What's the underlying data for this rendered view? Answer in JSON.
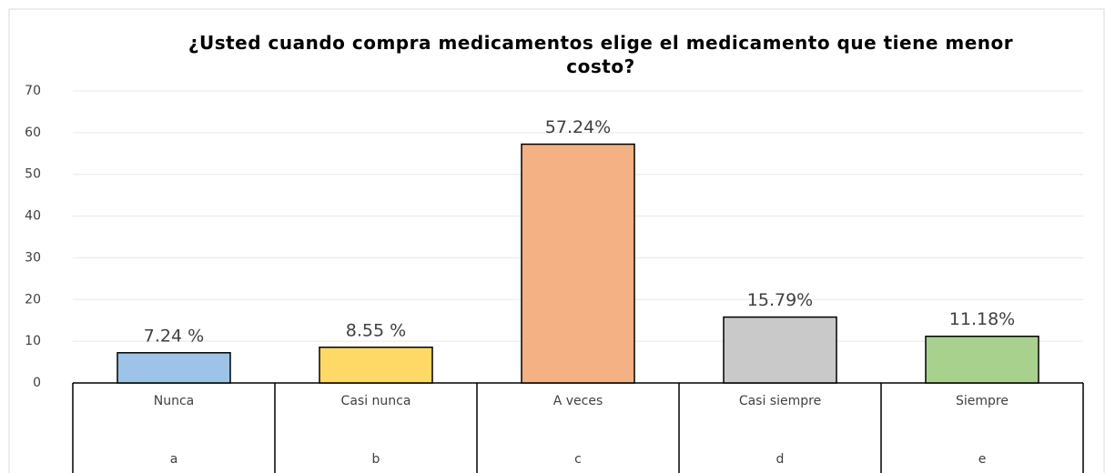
{
  "chart_data": {
    "type": "bar",
    "title": "¿Usted cuando compra medicamentos elige el medicamento que tiene menor costo?",
    "categories": [
      "Nunca",
      "Casi nunca",
      "A veces",
      "Casi siempre",
      "Siempre"
    ],
    "subcategories": [
      "a",
      "b",
      "c",
      "d",
      "e"
    ],
    "values": [
      7.24,
      8.55,
      57.24,
      15.79,
      11.18
    ],
    "value_labels": [
      "7.24 %",
      "8.55 %",
      "57.24%",
      "15.79%",
      "11.18%"
    ],
    "colors": [
      "#9dc3e6",
      "#ffd966",
      "#f4b183",
      "#c9c9c9",
      "#a9d18e"
    ],
    "ylim": [
      0,
      70
    ],
    "yticks": [
      0,
      10,
      20,
      30,
      40,
      50,
      60,
      70
    ],
    "grid": true
  }
}
